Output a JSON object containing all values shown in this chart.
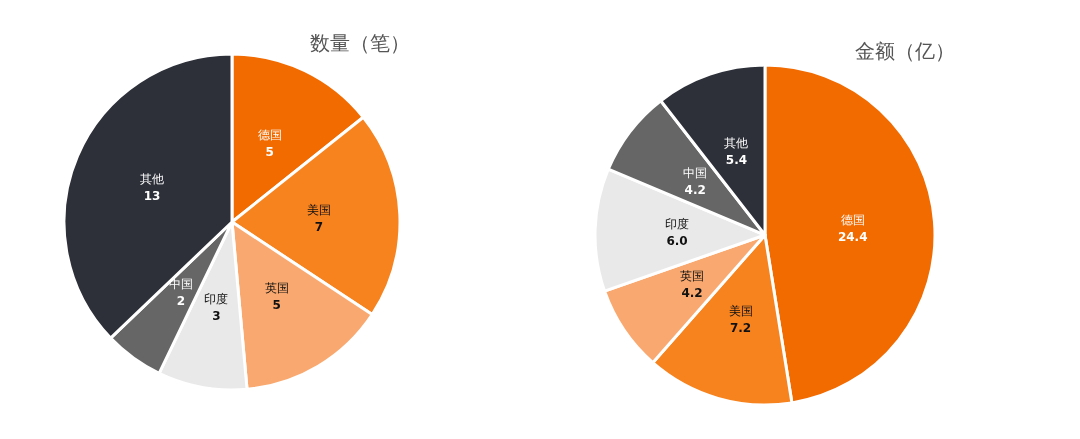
{
  "chart_data": [
    {
      "type": "pie",
      "title": "数量（笔）",
      "categories": [
        "德国",
        "美国",
        "英国",
        "印度",
        "中国",
        "其他"
      ],
      "values": [
        5,
        7,
        5,
        3,
        2,
        13
      ],
      "colors": [
        "#f26b00",
        "#f7831f",
        "#f9a96f",
        "#e9e9e9",
        "#666666",
        "#2d3039"
      ],
      "data_labels": true,
      "legend": false
    },
    {
      "type": "pie",
      "title": "金额（亿）",
      "categories": [
        "德国",
        "美国",
        "英国",
        "印度",
        "中国",
        "其他"
      ],
      "values": [
        24.4,
        7.2,
        4.2,
        6.0,
        4.2,
        5.4
      ],
      "value_labels": [
        "24.4",
        "7.2",
        "4.2",
        "6.0",
        "4.2",
        "5.4"
      ],
      "colors": [
        "#f26b00",
        "#f7831f",
        "#f9a96f",
        "#e9e9e9",
        "#666666",
        "#2d3039"
      ],
      "legend": false
    }
  ]
}
